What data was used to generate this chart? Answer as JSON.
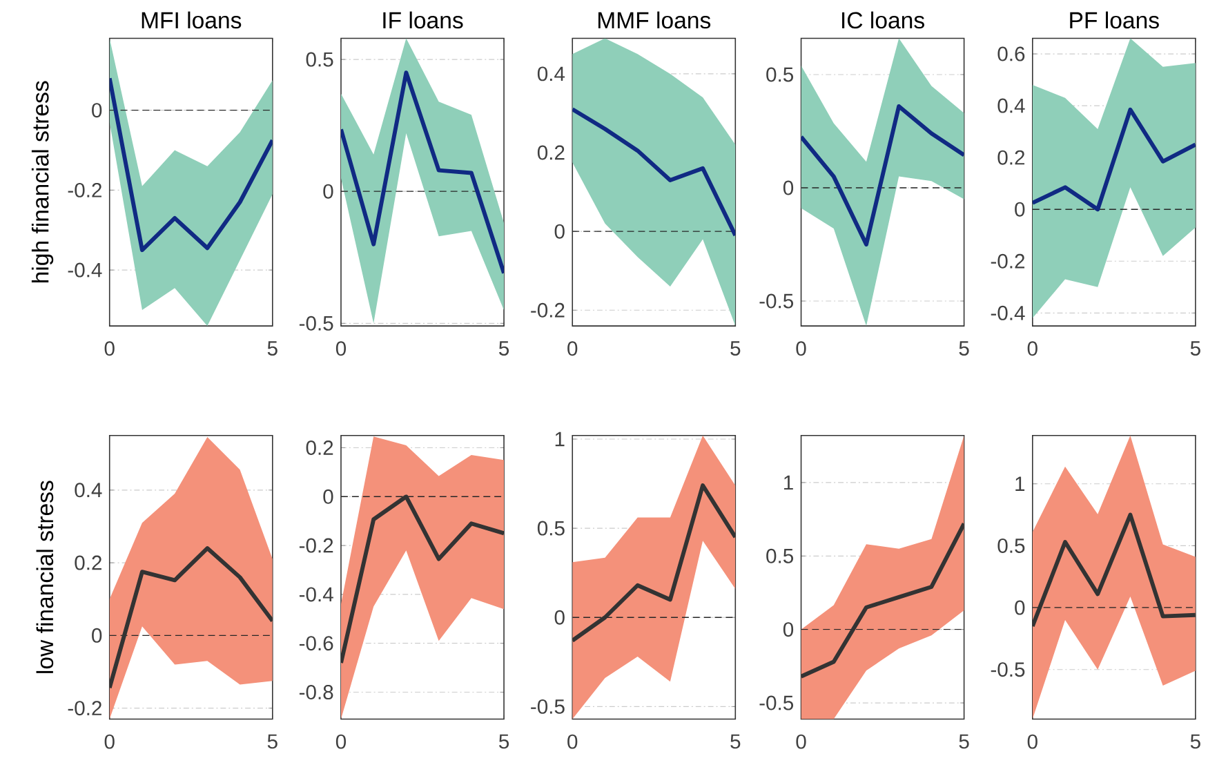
{
  "chart_data": [
    {
      "type": "line",
      "title": "MFI loans",
      "ylabel": "high financial stress",
      "x": [
        0,
        1,
        2,
        3,
        4,
        5
      ],
      "xlim": [
        0,
        5
      ],
      "xticks": [
        0,
        5
      ],
      "ylim": [
        -0.54,
        0.18
      ],
      "yticks": [
        -0.4,
        -0.2,
        0
      ],
      "grid": "y",
      "ref_lines": [
        {
          "axis": "y",
          "value": 0,
          "line_style": "dashed"
        }
      ],
      "series": [
        {
          "color": "#102a83",
          "values": [
            0.08,
            -0.35,
            -0.27,
            -0.345,
            -0.23,
            -0.075
          ],
          "lower": [
            -0.03,
            -0.5,
            -0.445,
            -0.54,
            -0.375,
            -0.21
          ],
          "upper": [
            0.18,
            -0.19,
            -0.1,
            -0.14,
            -0.055,
            0.075
          ]
        }
      ]
    },
    {
      "type": "line",
      "title": "IF loans",
      "x": [
        0,
        1,
        2,
        3,
        4,
        5
      ],
      "xlim": [
        0,
        5
      ],
      "xticks": [
        0,
        5
      ],
      "ylim": [
        -0.51,
        0.58
      ],
      "yticks": [
        -0.5,
        0,
        0.5
      ],
      "grid": "y",
      "ref_lines": [
        {
          "axis": "y",
          "value": 0,
          "line_style": "dashed"
        }
      ],
      "series": [
        {
          "color": "#102a83",
          "values": [
            0.235,
            -0.2,
            0.45,
            0.08,
            0.07,
            -0.31
          ],
          "lower": [
            0.05,
            -0.5,
            0.22,
            -0.17,
            -0.15,
            -0.45
          ],
          "upper": [
            0.37,
            0.14,
            0.58,
            0.34,
            0.29,
            -0.12
          ]
        }
      ]
    },
    {
      "type": "line",
      "title": "MMF loans",
      "x": [
        0,
        1,
        2,
        3,
        4,
        5
      ],
      "xlim": [
        0,
        5
      ],
      "xticks": [
        0,
        5
      ],
      "ylim": [
        -0.24,
        0.49
      ],
      "yticks": [
        -0.2,
        0,
        0.2,
        0.4
      ],
      "grid": "y",
      "ref_lines": [
        {
          "axis": "y",
          "value": 0,
          "line_style": "dashed"
        }
      ],
      "series": [
        {
          "color": "#102a83",
          "values": [
            0.31,
            0.26,
            0.205,
            0.13,
            0.16,
            -0.01
          ],
          "lower": [
            0.175,
            0.02,
            -0.065,
            -0.14,
            -0.02,
            -0.24
          ],
          "upper": [
            0.45,
            0.49,
            0.45,
            0.4,
            0.34,
            0.22
          ]
        }
      ]
    },
    {
      "type": "line",
      "title": "IC loans",
      "x": [
        0,
        1,
        2,
        3,
        4,
        5
      ],
      "xlim": [
        0,
        5
      ],
      "xticks": [
        0,
        5
      ],
      "ylim": [
        -0.61,
        0.66
      ],
      "yticks": [
        -0.5,
        0,
        0.5
      ],
      "grid": "y",
      "ref_lines": [
        {
          "axis": "y",
          "value": 0,
          "line_style": "dashed"
        }
      ],
      "series": [
        {
          "color": "#102a83",
          "values": [
            0.225,
            0.05,
            -0.25,
            0.36,
            0.24,
            0.145
          ],
          "lower": [
            -0.09,
            -0.18,
            -0.61,
            0.05,
            0.03,
            -0.05
          ],
          "upper": [
            0.54,
            0.285,
            0.115,
            0.66,
            0.45,
            0.33
          ]
        }
      ]
    },
    {
      "type": "line",
      "title": "PF loans",
      "x": [
        0,
        1,
        2,
        3,
        4,
        5
      ],
      "xlim": [
        0,
        5
      ],
      "xticks": [
        0,
        5
      ],
      "ylim": [
        -0.45,
        0.66
      ],
      "yticks": [
        -0.4,
        -0.2,
        0,
        0.2,
        0.4,
        0.6
      ],
      "grid": "y",
      "ref_lines": [
        {
          "axis": "y",
          "value": 0,
          "line_style": "dashed"
        }
      ],
      "series": [
        {
          "color": "#102a83",
          "values": [
            0.025,
            0.085,
            0,
            0.385,
            0.185,
            0.25
          ],
          "lower": [
            -0.42,
            -0.27,
            -0.3,
            0.085,
            -0.18,
            -0.07
          ],
          "upper": [
            0.48,
            0.43,
            0.31,
            0.66,
            0.55,
            0.565
          ]
        }
      ]
    },
    {
      "type": "line",
      "ylabel": "low financial stress",
      "x": [
        0,
        1,
        2,
        3,
        4,
        5
      ],
      "xlim": [
        0,
        5
      ],
      "xticks": [
        0,
        5
      ],
      "ylim": [
        -0.23,
        0.55
      ],
      "yticks": [
        -0.2,
        0,
        0.2,
        0.4
      ],
      "grid": "y",
      "ref_lines": [
        {
          "axis": "y",
          "value": 0,
          "line_style": "dashed"
        }
      ],
      "series": [
        {
          "color": "#333333",
          "values": [
            -0.144,
            0.175,
            0.152,
            0.24,
            0.16,
            0.04
          ],
          "lower": [
            -0.23,
            0.025,
            -0.08,
            -0.07,
            -0.135,
            -0.125
          ],
          "upper": [
            0.1,
            0.31,
            0.39,
            0.546,
            0.456,
            0.21
          ]
        }
      ]
    },
    {
      "type": "line",
      "x": [
        0,
        1,
        2,
        3,
        4,
        5
      ],
      "xlim": [
        0,
        5
      ],
      "xticks": [
        0,
        5
      ],
      "ylim": [
        -0.91,
        0.25
      ],
      "yticks": [
        -0.8,
        -0.6,
        -0.4,
        -0.2,
        0,
        0.2
      ],
      "grid": "y",
      "ref_lines": [
        {
          "axis": "y",
          "value": 0,
          "line_style": "dashed"
        }
      ],
      "series": [
        {
          "color": "#333333",
          "values": [
            -0.68,
            -0.093,
            0,
            -0.255,
            -0.11,
            -0.15
          ],
          "lower": [
            -0.91,
            -0.45,
            -0.22,
            -0.59,
            -0.415,
            -0.46
          ],
          "upper": [
            -0.44,
            0.246,
            0.21,
            0.084,
            0.17,
            0.15
          ]
        }
      ]
    },
    {
      "type": "line",
      "x": [
        0,
        1,
        2,
        3,
        4,
        5
      ],
      "xlim": [
        0,
        5
      ],
      "xticks": [
        0,
        5
      ],
      "ylim": [
        -0.57,
        1.02
      ],
      "yticks": [
        -0.5,
        0,
        0.5,
        1
      ],
      "grid": "y",
      "ref_lines": [
        {
          "axis": "y",
          "value": 0,
          "line_style": "dashed"
        }
      ],
      "series": [
        {
          "color": "#333333",
          "values": [
            -0.13,
            0,
            0.18,
            0.1,
            0.74,
            0.45
          ],
          "lower": [
            -0.57,
            -0.34,
            -0.22,
            -0.36,
            0.43,
            0.16
          ],
          "upper": [
            0.31,
            0.335,
            0.56,
            0.56,
            1.02,
            0.74
          ]
        }
      ]
    },
    {
      "type": "line",
      "x": [
        0,
        1,
        2,
        3,
        4,
        5
      ],
      "xlim": [
        0,
        5
      ],
      "xticks": [
        0,
        5
      ],
      "ylim": [
        -0.61,
        1.32
      ],
      "yticks": [
        -0.5,
        0,
        0.5,
        1
      ],
      "grid": "y",
      "ref_lines": [
        {
          "axis": "y",
          "value": 0,
          "line_style": "dashed"
        }
      ],
      "series": [
        {
          "color": "#333333",
          "values": [
            -0.32,
            -0.22,
            0.15,
            0.22,
            0.29,
            0.72
          ],
          "lower": [
            -0.61,
            -0.61,
            -0.28,
            -0.13,
            -0.04,
            0.13
          ],
          "upper": [
            0,
            0.165,
            0.58,
            0.55,
            0.615,
            1.32
          ]
        }
      ]
    },
    {
      "type": "line",
      "x": [
        0,
        1,
        2,
        3,
        4,
        5
      ],
      "xlim": [
        0,
        5
      ],
      "xticks": [
        0,
        5
      ],
      "ylim": [
        -0.9,
        1.39
      ],
      "yticks": [
        -0.5,
        0,
        0.5,
        1
      ],
      "grid": "y",
      "ref_lines": [
        {
          "axis": "y",
          "value": 0,
          "line_style": "dashed"
        }
      ],
      "series": [
        {
          "color": "#333333",
          "values": [
            -0.15,
            0.53,
            0.11,
            0.75,
            -0.07,
            -0.06
          ],
          "lower": [
            -0.9,
            -0.1,
            -0.5,
            0.09,
            -0.63,
            -0.51
          ],
          "upper": [
            0.61,
            1.14,
            0.755,
            1.39,
            0.51,
            0.41
          ]
        }
      ]
    }
  ]
}
